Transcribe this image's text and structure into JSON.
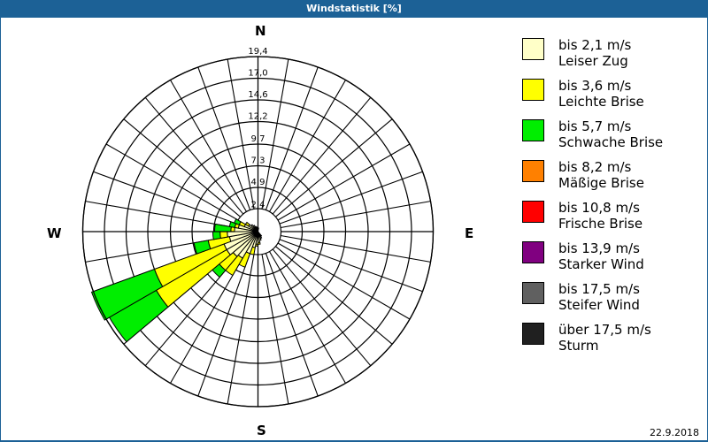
{
  "window": {
    "title": "Windstatistik [%]"
  },
  "footer": {
    "date": "22.9.2018"
  },
  "compass": {
    "n": "N",
    "e": "E",
    "s": "S",
    "w": "W"
  },
  "legend": [
    {
      "range": "bis 2,1 m/s",
      "name": "Leiser Zug",
      "color": "#ffffc8"
    },
    {
      "range": "bis 3,6 m/s",
      "name": "Leichte Brise",
      "color": "#ffff00"
    },
    {
      "range": "bis 5,7 m/s",
      "name": "Schwache Brise",
      "color": "#00ee00"
    },
    {
      "range": "bis 8,2 m/s",
      "name": "Mäßige Brise",
      "color": "#ff8000"
    },
    {
      "range": "bis 10,8 m/s",
      "name": "Frische Brise",
      "color": "#ff0000"
    },
    {
      "range": "bis 13,9 m/s",
      "name": "Starker Wind",
      "color": "#800080"
    },
    {
      "range": "bis 17,5 m/s",
      "name": "Steifer Wind",
      "color": "#606060"
    },
    {
      "range": "über 17,5 m/s",
      "name": "Sturm",
      "color": "#202020"
    }
  ],
  "chart_data": {
    "type": "windrose",
    "title": "Windstatistik [%]",
    "ring_labels": [
      "2,4",
      "4,9",
      "7,3",
      "9,7",
      "12,2",
      "14,6",
      "17,0",
      "19,4"
    ],
    "ring_values": [
      2.4,
      4.9,
      7.3,
      9.7,
      12.2,
      14.6,
      17.0,
      19.4
    ],
    "rmax": 19.4,
    "sector_width_deg": 10,
    "classes": [
      "bis 2,1 m/s",
      "bis 3,6 m/s",
      "bis 5,7 m/s",
      "bis 8,2 m/s",
      "bis 10,8 m/s",
      "bis 13,9 m/s",
      "bis 17,5 m/s",
      "über 17,5 m/s"
    ],
    "note": "cumulative % per direction sector (bearing of sector center, deg clockwise from N)",
    "sectors": [
      {
        "dir": 155,
        "cum": [
          0.8
        ]
      },
      {
        "dir": 165,
        "cum": [
          1.0
        ]
      },
      {
        "dir": 175,
        "cum": [
          1.2,
          1.4
        ]
      },
      {
        "dir": 185,
        "cum": [
          1.4,
          1.6
        ]
      },
      {
        "dir": 195,
        "cum": [
          1.8,
          2.6
        ]
      },
      {
        "dir": 205,
        "cum": [
          2.6,
          4.2
        ]
      },
      {
        "dir": 215,
        "cum": [
          3.4,
          5.6
        ]
      },
      {
        "dir": 225,
        "cum": [
          3.6,
          5.6,
          6.6
        ]
      },
      {
        "dir": 235,
        "cum": [
          4.0,
          13.0,
          19.0
        ]
      },
      {
        "dir": 245,
        "cum": [
          4.0,
          12.2,
          19.6
        ]
      },
      {
        "dir": 255,
        "cum": [
          3.2,
          5.6,
          7.2
        ]
      },
      {
        "dir": 265,
        "cum": [
          3.4,
          4.2,
          5.0
        ]
      },
      {
        "dir": 275,
        "cum": [
          2.6,
          3.0,
          4.8
        ]
      },
      {
        "dir": 285,
        "cum": [
          2.2,
          2.6,
          3.2
        ]
      },
      {
        "dir": 295,
        "cum": [
          1.6,
          2.2,
          2.8
        ]
      },
      {
        "dir": 305,
        "cum": [
          1.2,
          1.6
        ]
      },
      {
        "dir": 315,
        "cum": [
          1.0
        ]
      },
      {
        "dir": 325,
        "cum": [
          0.8
        ]
      },
      {
        "dir": 335,
        "cum": [
          0.6
        ]
      },
      {
        "dir": 345,
        "cum": [
          0.5
        ]
      },
      {
        "dir": 5,
        "cum": [
          0.4
        ]
      },
      {
        "dir": 145,
        "cum": [
          0.6
        ]
      }
    ]
  }
}
